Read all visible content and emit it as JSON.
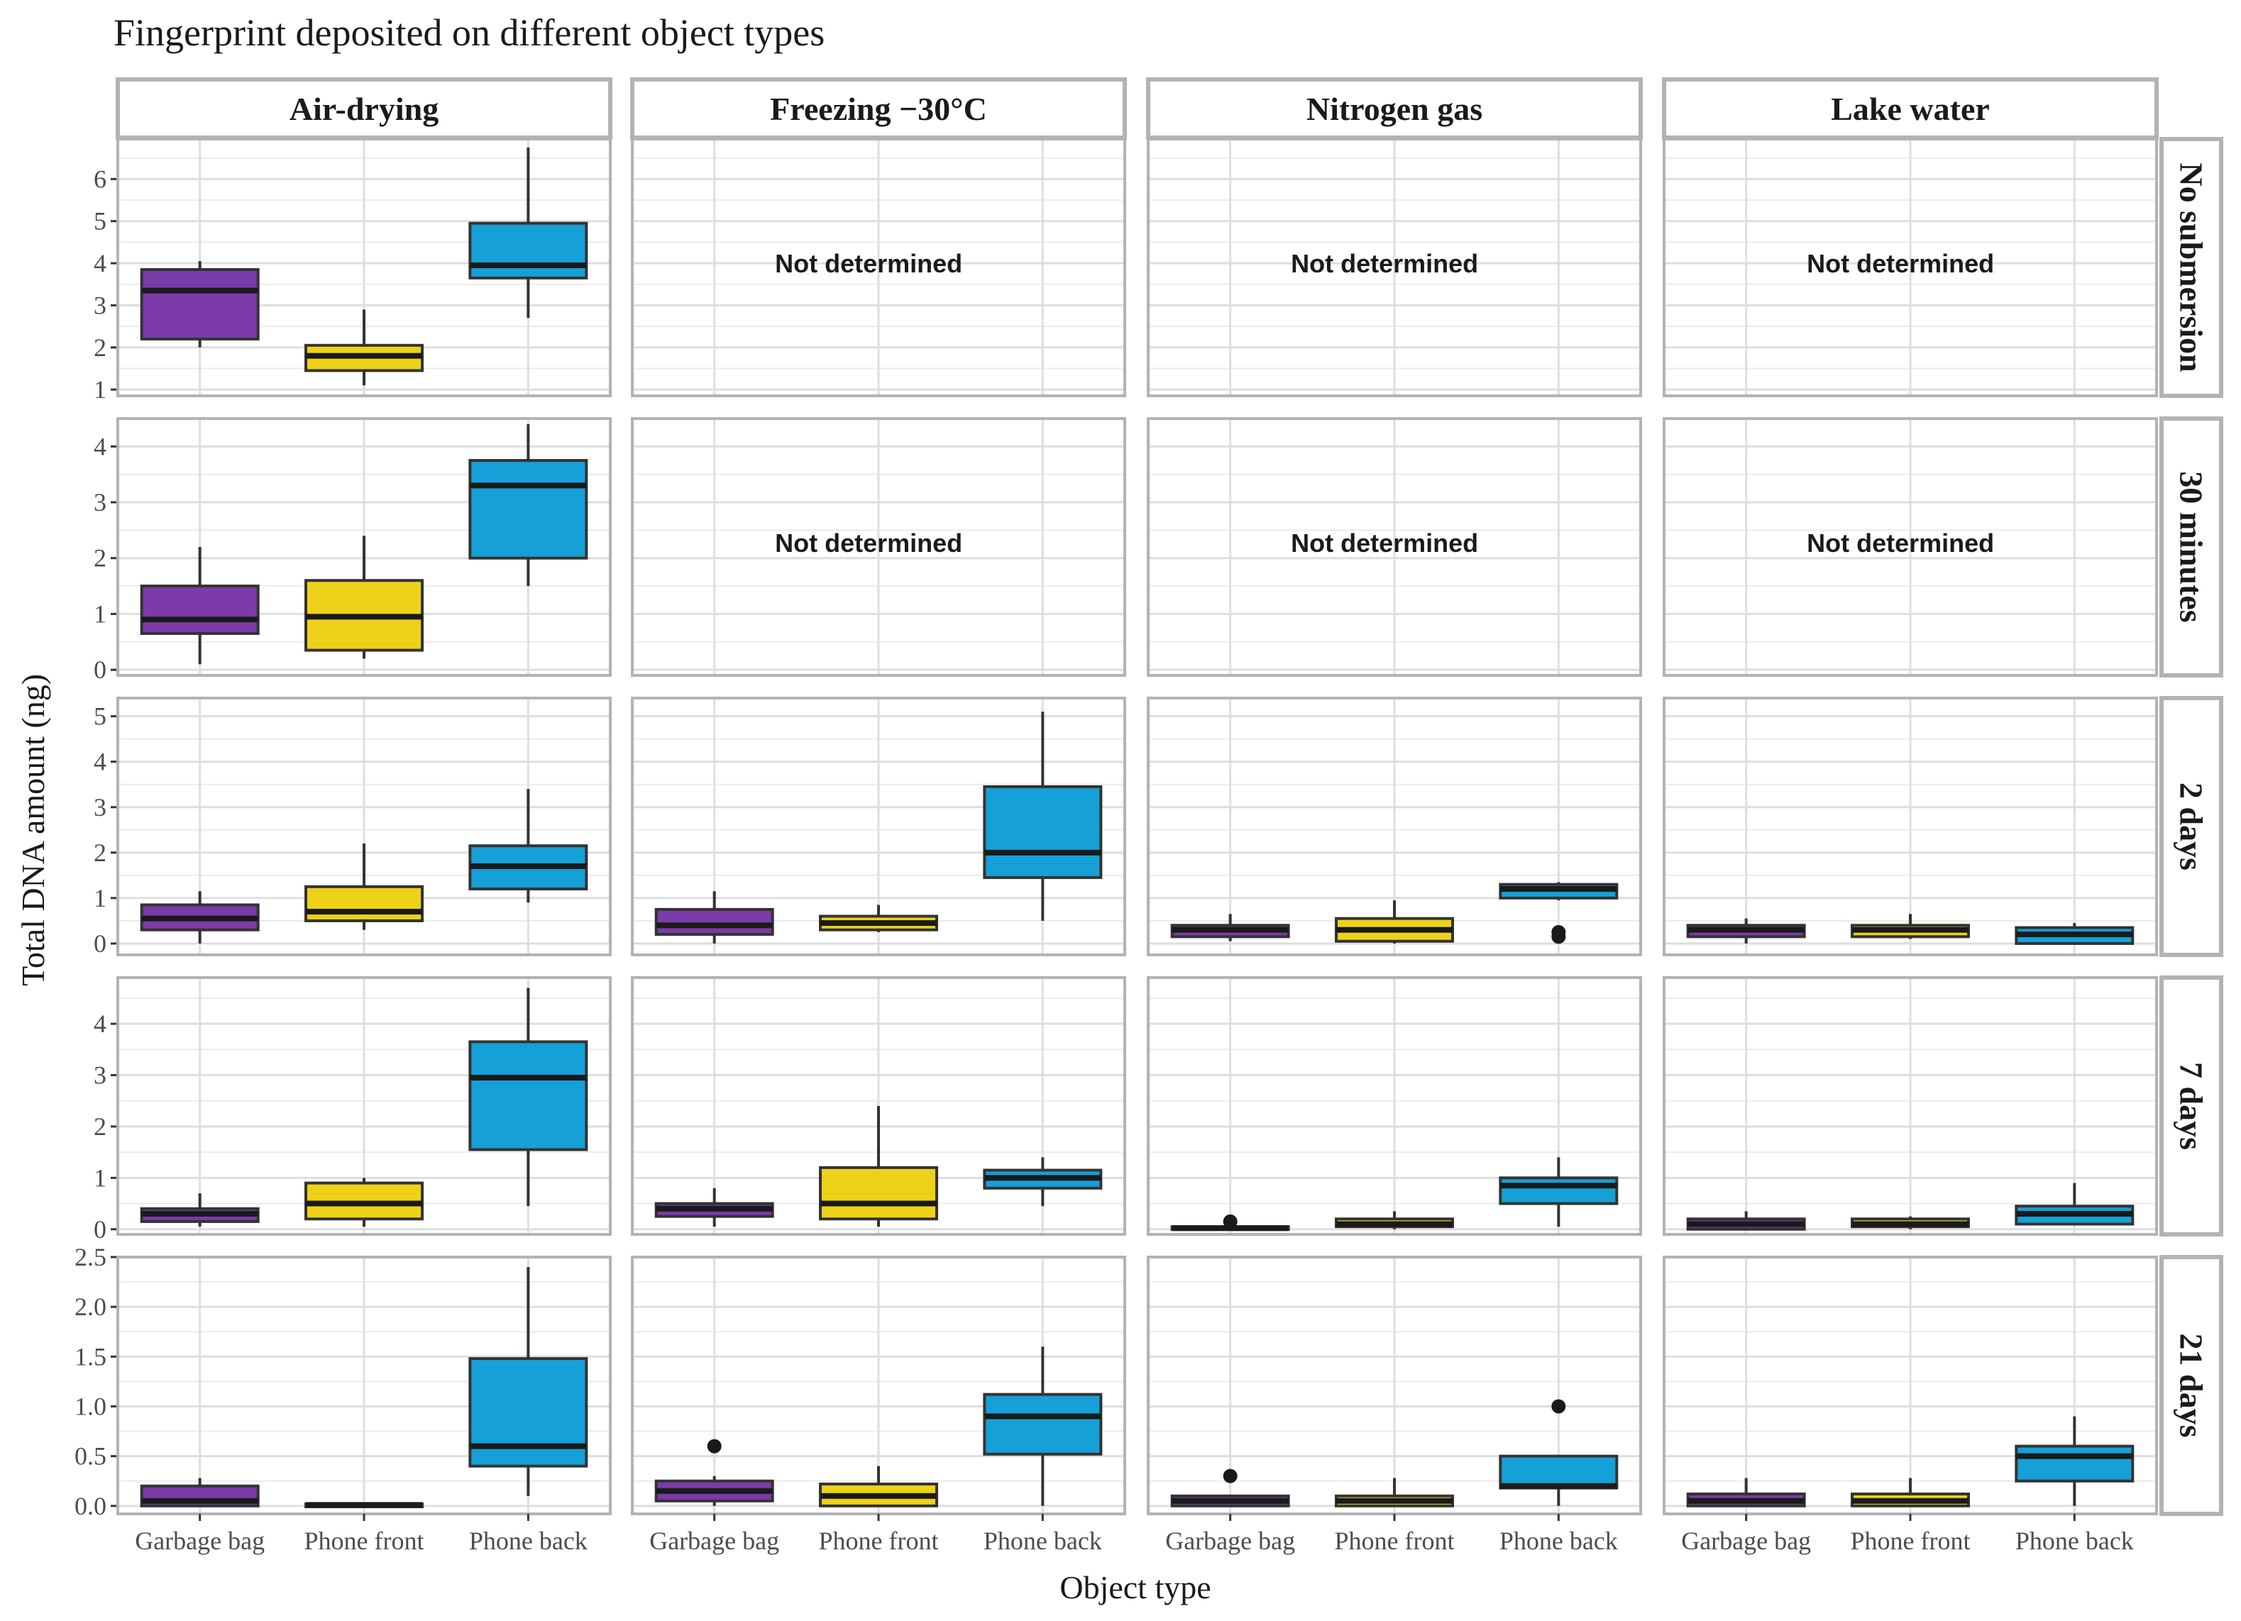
{
  "chart_data": {
    "type": "boxplot",
    "title": "Fingerprint deposited on different object types",
    "xlabel": "Object type",
    "ylabel": "Total DNA amount (ng)",
    "categories": [
      "Garbage bag",
      "Phone front",
      "Phone back"
    ],
    "colors": {
      "Garbage bag": "#7B3BAA",
      "Phone front": "#EED219",
      "Phone back": "#15A0D7"
    },
    "columns": [
      "Air-drying",
      "Freezing −30°C",
      "Nitrogen gas",
      "Lake water"
    ],
    "rows": [
      {
        "label": "No submersion",
        "ylim": [
          0.85,
          6.95
        ],
        "ticks": [
          1,
          2,
          3,
          4,
          5,
          6
        ],
        "tick_labels": [
          "1",
          "2",
          "3",
          "4",
          "5",
          "6"
        ]
      },
      {
        "label": "30 minutes",
        "ylim": [
          -0.1,
          4.5
        ],
        "ticks": [
          0,
          1,
          2,
          3,
          4
        ],
        "tick_labels": [
          "0",
          "1",
          "2",
          "3",
          "4"
        ]
      },
      {
        "label": "2 days",
        "ylim": [
          -0.25,
          5.4
        ],
        "ticks": [
          0,
          1,
          2,
          3,
          4,
          5
        ],
        "tick_labels": [
          "0",
          "1",
          "2",
          "3",
          "4",
          "5"
        ]
      },
      {
        "label": "7 days",
        "ylim": [
          -0.1,
          4.9
        ],
        "ticks": [
          0,
          1,
          2,
          3,
          4
        ],
        "tick_labels": [
          "0",
          "1",
          "2",
          "3",
          "4"
        ]
      },
      {
        "label": "21 days",
        "ylim": [
          -0.08,
          2.5
        ],
        "ticks": [
          0,
          0.5,
          1,
          1.5,
          2,
          2.5
        ],
        "tick_labels": [
          "0.0",
          "0.5",
          "1.0",
          "1.5",
          "2.0",
          "2.5"
        ]
      }
    ],
    "not_determined_label": "Not determined",
    "panels": [
      {
        "row": 0,
        "col": 0,
        "boxes": [
          {
            "category": "Garbage bag",
            "min": 2.0,
            "q1": 2.2,
            "median": 3.35,
            "q3": 3.85,
            "max": 4.05,
            "outliers": []
          },
          {
            "category": "Phone front",
            "min": 1.1,
            "q1": 1.45,
            "median": 1.8,
            "q3": 2.05,
            "max": 2.9,
            "outliers": []
          },
          {
            "category": "Phone back",
            "min": 2.7,
            "q1": 3.65,
            "median": 3.95,
            "q3": 4.95,
            "max": 6.75,
            "outliers": []
          }
        ]
      },
      {
        "row": 0,
        "col": 1,
        "not_determined": true
      },
      {
        "row": 0,
        "col": 2,
        "not_determined": true
      },
      {
        "row": 0,
        "col": 3,
        "not_determined": true
      },
      {
        "row": 1,
        "col": 0,
        "boxes": [
          {
            "category": "Garbage bag",
            "min": 0.1,
            "q1": 0.65,
            "median": 0.9,
            "q3": 1.5,
            "max": 2.2,
            "outliers": []
          },
          {
            "category": "Phone front",
            "min": 0.2,
            "q1": 0.35,
            "median": 0.95,
            "q3": 1.6,
            "max": 2.4,
            "outliers": []
          },
          {
            "category": "Phone back",
            "min": 1.5,
            "q1": 2.0,
            "median": 3.3,
            "q3": 3.75,
            "max": 4.4,
            "outliers": []
          }
        ]
      },
      {
        "row": 1,
        "col": 1,
        "not_determined": true
      },
      {
        "row": 1,
        "col": 2,
        "not_determined": true
      },
      {
        "row": 1,
        "col": 3,
        "not_determined": true
      },
      {
        "row": 2,
        "col": 0,
        "boxes": [
          {
            "category": "Garbage bag",
            "min": 0.0,
            "q1": 0.3,
            "median": 0.55,
            "q3": 0.85,
            "max": 1.15,
            "outliers": []
          },
          {
            "category": "Phone front",
            "min": 0.3,
            "q1": 0.5,
            "median": 0.7,
            "q3": 1.25,
            "max": 2.2,
            "outliers": []
          },
          {
            "category": "Phone back",
            "min": 0.9,
            "q1": 1.2,
            "median": 1.7,
            "q3": 2.15,
            "max": 3.4,
            "outliers": []
          }
        ]
      },
      {
        "row": 2,
        "col": 1,
        "boxes": [
          {
            "category": "Garbage bag",
            "min": 0.0,
            "q1": 0.2,
            "median": 0.4,
            "q3": 0.75,
            "max": 1.15,
            "outliers": []
          },
          {
            "category": "Phone front",
            "min": 0.25,
            "q1": 0.3,
            "median": 0.45,
            "q3": 0.6,
            "max": 0.85,
            "outliers": []
          },
          {
            "category": "Phone back",
            "min": 0.5,
            "q1": 1.45,
            "median": 2.0,
            "q3": 3.45,
            "max": 5.1,
            "outliers": []
          }
        ]
      },
      {
        "row": 2,
        "col": 2,
        "boxes": [
          {
            "category": "Garbage bag",
            "min": 0.05,
            "q1": 0.15,
            "median": 0.3,
            "q3": 0.4,
            "max": 0.65,
            "outliers": []
          },
          {
            "category": "Phone front",
            "min": 0.0,
            "q1": 0.05,
            "median": 0.3,
            "q3": 0.55,
            "max": 0.95,
            "outliers": []
          },
          {
            "category": "Phone back",
            "min": 0.95,
            "q1": 1.0,
            "median": 1.2,
            "q3": 1.3,
            "max": 1.35,
            "outliers": [
              0.15,
              0.25
            ]
          }
        ]
      },
      {
        "row": 2,
        "col": 3,
        "boxes": [
          {
            "category": "Garbage bag",
            "min": 0.0,
            "q1": 0.15,
            "median": 0.3,
            "q3": 0.4,
            "max": 0.55,
            "outliers": []
          },
          {
            "category": "Phone front",
            "min": 0.1,
            "q1": 0.15,
            "median": 0.3,
            "q3": 0.4,
            "max": 0.65,
            "outliers": []
          },
          {
            "category": "Phone back",
            "min": 0.0,
            "q1": 0.0,
            "median": 0.2,
            "q3": 0.35,
            "max": 0.45,
            "outliers": []
          }
        ]
      },
      {
        "row": 3,
        "col": 0,
        "boxes": [
          {
            "category": "Garbage bag",
            "min": 0.05,
            "q1": 0.15,
            "median": 0.3,
            "q3": 0.4,
            "max": 0.7,
            "outliers": []
          },
          {
            "category": "Phone front",
            "min": 0.05,
            "q1": 0.2,
            "median": 0.5,
            "q3": 0.9,
            "max": 1.0,
            "outliers": []
          },
          {
            "category": "Phone back",
            "min": 0.45,
            "q1": 1.55,
            "median": 2.95,
            "q3": 3.65,
            "max": 4.7,
            "outliers": []
          }
        ]
      },
      {
        "row": 3,
        "col": 1,
        "boxes": [
          {
            "category": "Garbage bag",
            "min": 0.05,
            "q1": 0.25,
            "median": 0.4,
            "q3": 0.5,
            "max": 0.8,
            "outliers": []
          },
          {
            "category": "Phone front",
            "min": 0.05,
            "q1": 0.2,
            "median": 0.5,
            "q3": 1.2,
            "max": 2.4,
            "outliers": []
          },
          {
            "category": "Phone back",
            "min": 0.45,
            "q1": 0.8,
            "median": 1.0,
            "q3": 1.15,
            "max": 1.4,
            "outliers": []
          }
        ]
      },
      {
        "row": 3,
        "col": 2,
        "boxes": [
          {
            "category": "Garbage bag",
            "min": 0.0,
            "q1": 0.0,
            "median": 0.02,
            "q3": 0.05,
            "max": 0.08,
            "outliers": [
              0.15
            ]
          },
          {
            "category": "Phone front",
            "min": 0.0,
            "q1": 0.05,
            "median": 0.1,
            "q3": 0.2,
            "max": 0.35,
            "outliers": []
          },
          {
            "category": "Phone back",
            "min": 0.05,
            "q1": 0.5,
            "median": 0.85,
            "q3": 1.0,
            "max": 1.4,
            "outliers": []
          }
        ]
      },
      {
        "row": 3,
        "col": 3,
        "boxes": [
          {
            "category": "Garbage bag",
            "min": 0.0,
            "q1": 0.0,
            "median": 0.1,
            "q3": 0.2,
            "max": 0.35,
            "outliers": []
          },
          {
            "category": "Phone front",
            "min": 0.0,
            "q1": 0.05,
            "median": 0.1,
            "q3": 0.2,
            "max": 0.25,
            "outliers": []
          },
          {
            "category": "Phone back",
            "min": 0.1,
            "q1": 0.1,
            "median": 0.3,
            "q3": 0.45,
            "max": 0.9,
            "outliers": []
          }
        ]
      },
      {
        "row": 4,
        "col": 0,
        "boxes": [
          {
            "category": "Garbage bag",
            "min": 0.0,
            "q1": 0.0,
            "median": 0.05,
            "q3": 0.2,
            "max": 0.28,
            "outliers": []
          },
          {
            "category": "Phone front",
            "min": 0.0,
            "q1": 0.0,
            "median": 0.01,
            "q3": 0.02,
            "max": 0.02,
            "outliers": []
          },
          {
            "category": "Phone back",
            "min": 0.1,
            "q1": 0.4,
            "median": 0.6,
            "q3": 1.48,
            "max": 2.4,
            "outliers": []
          }
        ]
      },
      {
        "row": 4,
        "col": 1,
        "boxes": [
          {
            "category": "Garbage bag",
            "min": 0.0,
            "q1": 0.05,
            "median": 0.15,
            "q3": 0.25,
            "max": 0.3,
            "outliers": [
              0.6
            ]
          },
          {
            "category": "Phone front",
            "min": 0.0,
            "q1": 0.0,
            "median": 0.1,
            "q3": 0.22,
            "max": 0.4,
            "outliers": []
          },
          {
            "category": "Phone back",
            "min": 0.0,
            "q1": 0.52,
            "median": 0.9,
            "q3": 1.12,
            "max": 1.6,
            "outliers": []
          }
        ]
      },
      {
        "row": 4,
        "col": 2,
        "boxes": [
          {
            "category": "Garbage bag",
            "min": 0.0,
            "q1": 0.0,
            "median": 0.05,
            "q3": 0.1,
            "max": 0.1,
            "outliers": [
              0.3
            ]
          },
          {
            "category": "Phone front",
            "min": 0.0,
            "q1": 0.0,
            "median": 0.05,
            "q3": 0.1,
            "max": 0.28,
            "outliers": []
          },
          {
            "category": "Phone back",
            "min": 0.0,
            "q1": 0.18,
            "median": 0.2,
            "q3": 0.5,
            "max": 0.5,
            "outliers": [
              1.0
            ]
          }
        ]
      },
      {
        "row": 4,
        "col": 3,
        "boxes": [
          {
            "category": "Garbage bag",
            "min": 0.0,
            "q1": 0.0,
            "median": 0.05,
            "q3": 0.12,
            "max": 0.28,
            "outliers": []
          },
          {
            "category": "Phone front",
            "min": 0.0,
            "q1": 0.0,
            "median": 0.05,
            "q3": 0.12,
            "max": 0.28,
            "outliers": []
          },
          {
            "category": "Phone back",
            "min": 0.0,
            "q1": 0.25,
            "median": 0.5,
            "q3": 0.6,
            "max": 0.9,
            "outliers": []
          }
        ]
      }
    ]
  }
}
